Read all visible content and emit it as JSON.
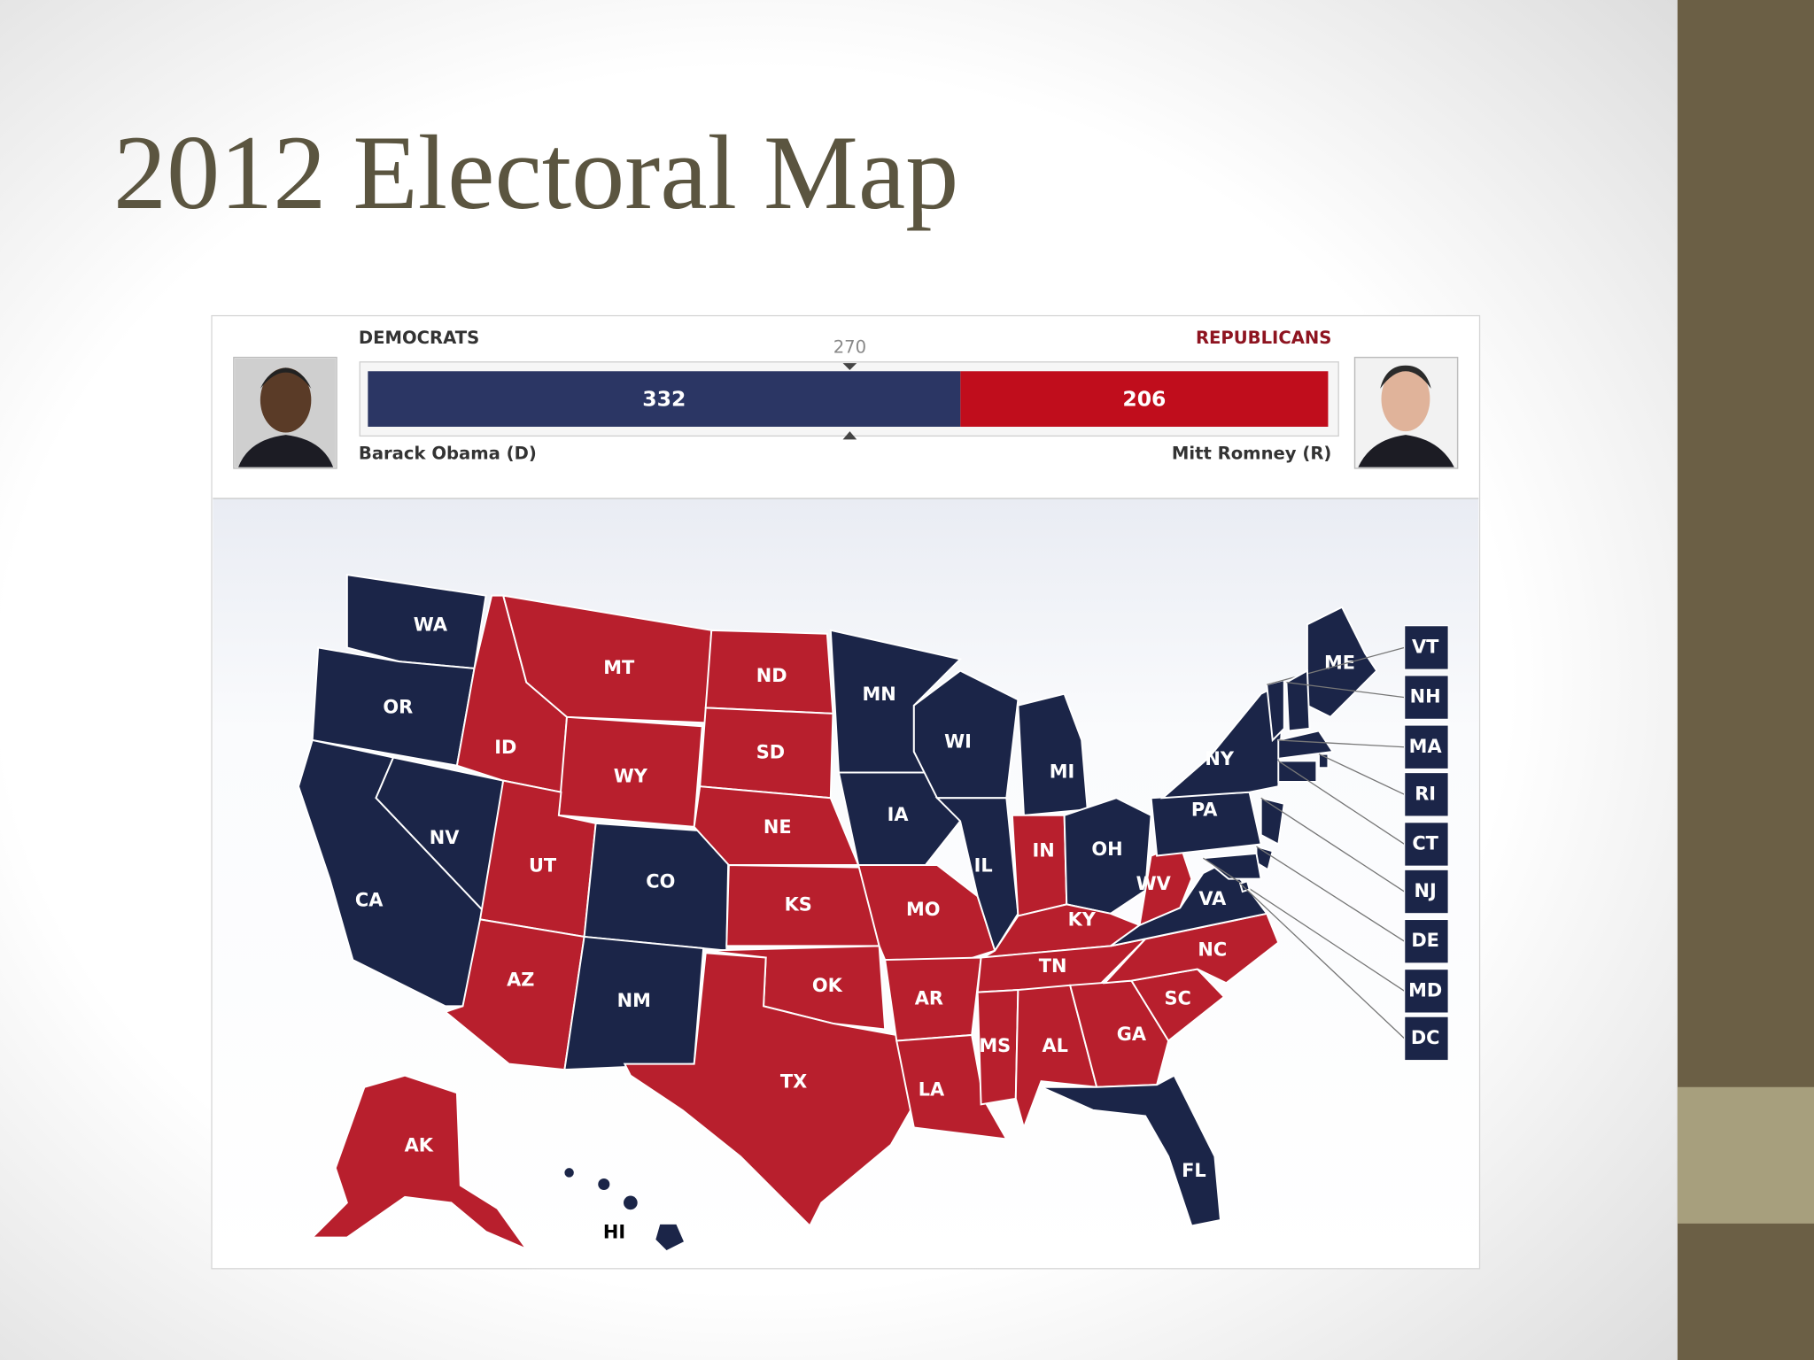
{
  "title": "2012 Electoral Map",
  "scoreboard": {
    "left_heading": "DEMOCRATS",
    "right_heading": "REPUBLICANS",
    "threshold": 270,
    "dem_votes": 332,
    "rep_votes": 206,
    "dem_candidate": "Barack Obama (D)",
    "rep_candidate": "Mitt Romney (R)",
    "dem_color": "#2b3664",
    "rep_color": "#c00d1c"
  },
  "map": {
    "colors": {
      "D": "#1b2548",
      "R": "#b81f2d"
    },
    "states": [
      {
        "abbr": "WA",
        "party": "D"
      },
      {
        "abbr": "OR",
        "party": "D"
      },
      {
        "abbr": "CA",
        "party": "D"
      },
      {
        "abbr": "NV",
        "party": "D"
      },
      {
        "abbr": "ID",
        "party": "R"
      },
      {
        "abbr": "MT",
        "party": "R"
      },
      {
        "abbr": "WY",
        "party": "R"
      },
      {
        "abbr": "UT",
        "party": "R"
      },
      {
        "abbr": "AZ",
        "party": "R"
      },
      {
        "abbr": "CO",
        "party": "D"
      },
      {
        "abbr": "NM",
        "party": "D"
      },
      {
        "abbr": "ND",
        "party": "R"
      },
      {
        "abbr": "SD",
        "party": "R"
      },
      {
        "abbr": "NE",
        "party": "R"
      },
      {
        "abbr": "KS",
        "party": "R"
      },
      {
        "abbr": "OK",
        "party": "R"
      },
      {
        "abbr": "TX",
        "party": "R"
      },
      {
        "abbr": "MN",
        "party": "D"
      },
      {
        "abbr": "IA",
        "party": "D"
      },
      {
        "abbr": "MO",
        "party": "R"
      },
      {
        "abbr": "AR",
        "party": "R"
      },
      {
        "abbr": "LA",
        "party": "R"
      },
      {
        "abbr": "WI",
        "party": "D"
      },
      {
        "abbr": "IL",
        "party": "D"
      },
      {
        "abbr": "MI",
        "party": "D"
      },
      {
        "abbr": "IN",
        "party": "R"
      },
      {
        "abbr": "OH",
        "party": "D"
      },
      {
        "abbr": "KY",
        "party": "R"
      },
      {
        "abbr": "TN",
        "party": "R"
      },
      {
        "abbr": "MS",
        "party": "R"
      },
      {
        "abbr": "AL",
        "party": "R"
      },
      {
        "abbr": "GA",
        "party": "R"
      },
      {
        "abbr": "FL",
        "party": "D"
      },
      {
        "abbr": "SC",
        "party": "R"
      },
      {
        "abbr": "NC",
        "party": "R"
      },
      {
        "abbr": "VA",
        "party": "D"
      },
      {
        "abbr": "WV",
        "party": "R"
      },
      {
        "abbr": "PA",
        "party": "D"
      },
      {
        "abbr": "NY",
        "party": "D"
      },
      {
        "abbr": "ME",
        "party": "D"
      },
      {
        "abbr": "AK",
        "party": "R"
      },
      {
        "abbr": "HI",
        "party": "D"
      },
      {
        "abbr": "VT",
        "party": "D"
      },
      {
        "abbr": "NH",
        "party": "D"
      },
      {
        "abbr": "MA",
        "party": "D"
      },
      {
        "abbr": "RI",
        "party": "D"
      },
      {
        "abbr": "CT",
        "party": "D"
      },
      {
        "abbr": "NJ",
        "party": "D"
      },
      {
        "abbr": "DE",
        "party": "D"
      },
      {
        "abbr": "MD",
        "party": "D"
      },
      {
        "abbr": "DC",
        "party": "D"
      }
    ]
  }
}
